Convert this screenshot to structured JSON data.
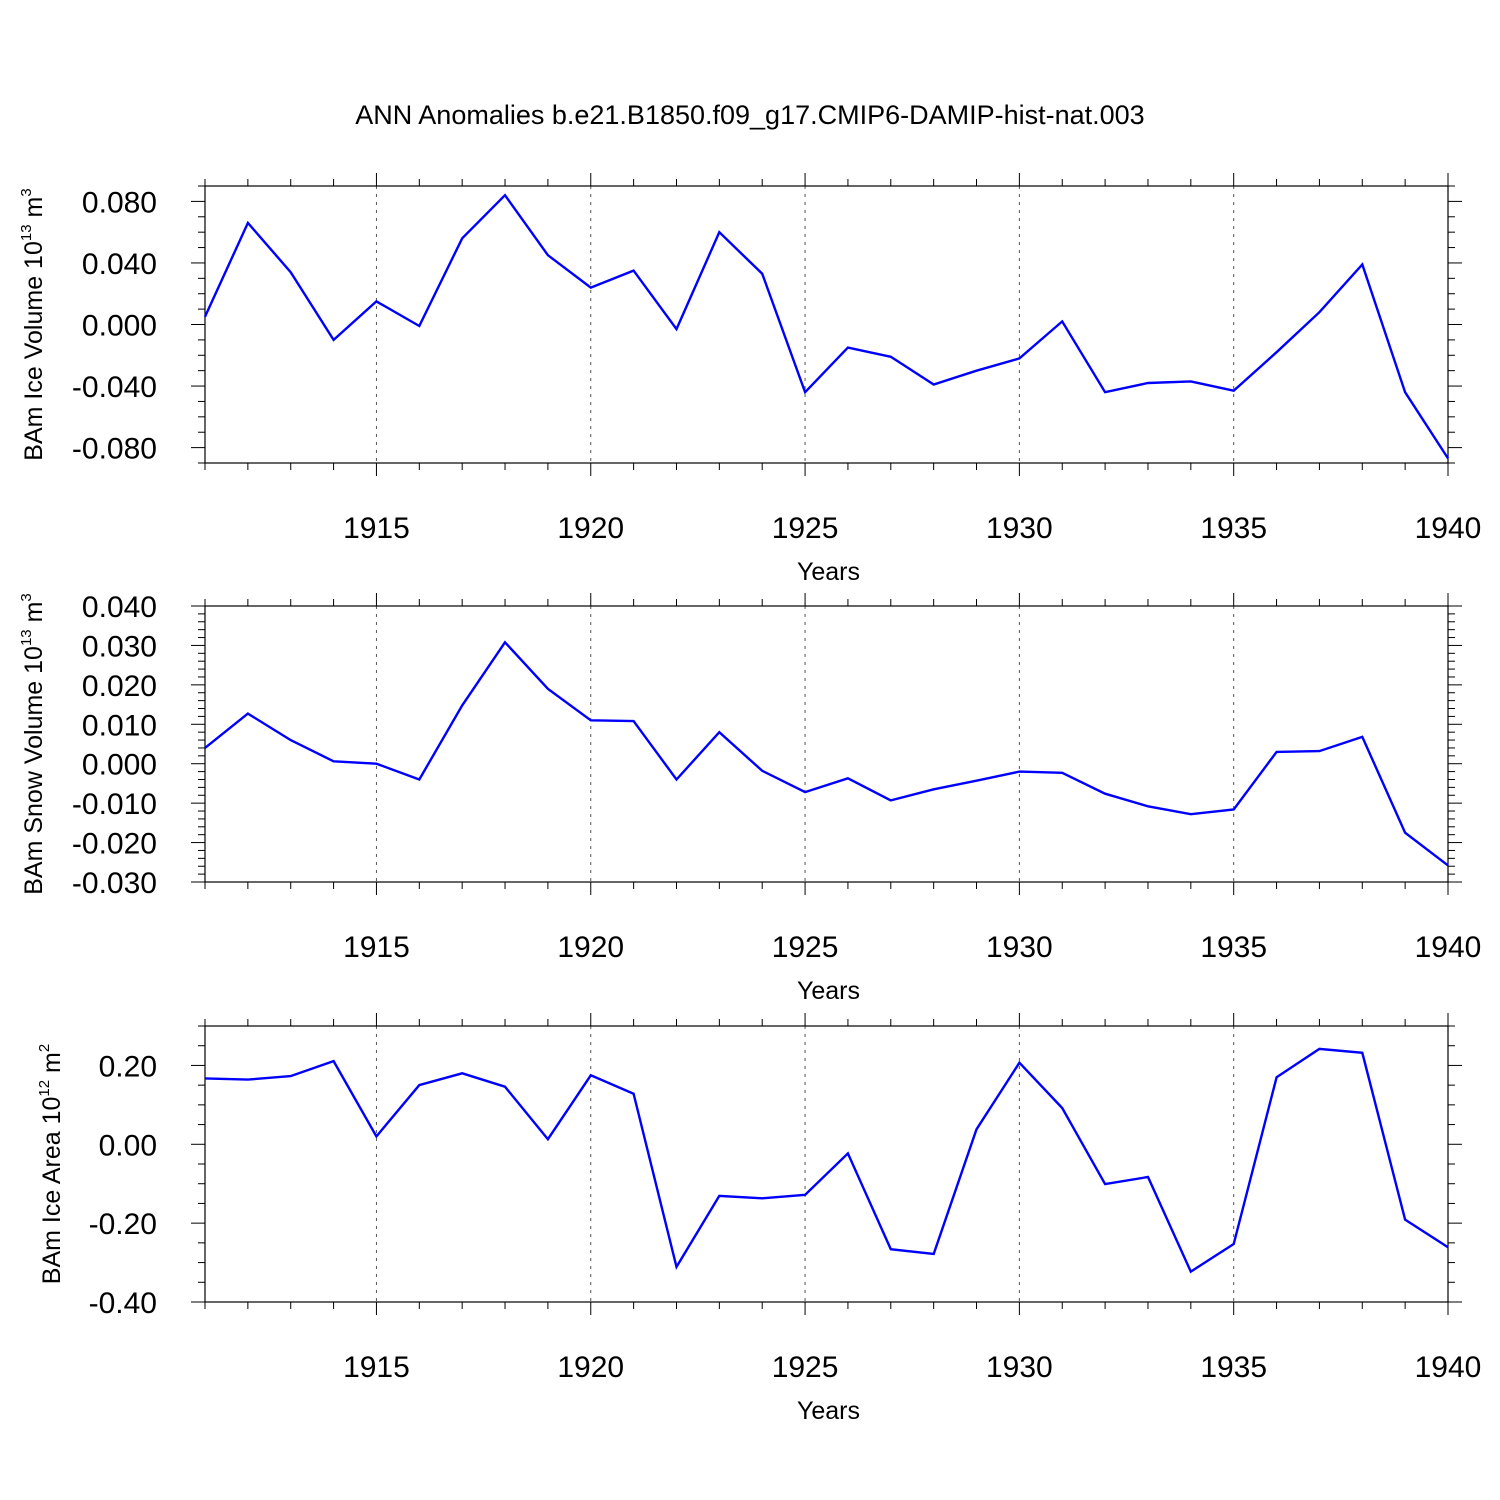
{
  "figure": {
    "title": "ANN Anomalies b.e21.B1850.f09_g17.CMIP6-DAMIP-hist-nat.003"
  },
  "chart_data": [
    {
      "type": "line",
      "ylabel": {
        "main": "BAm Ice Volume 10",
        "exp": "13",
        "unit": " m",
        "unit_exp": "3"
      },
      "xlabel": "Years",
      "xlim": [
        1911,
        1940
      ],
      "ylim": [
        -0.09,
        0.09
      ],
      "xticks": [
        1915,
        1920,
        1925,
        1930,
        1935,
        1940
      ],
      "yticks": [
        -0.08,
        -0.04,
        0.0,
        0.04,
        0.08
      ],
      "ytick_labels": [
        "-0.080",
        "-0.040",
        "0.000",
        "0.040",
        "0.080"
      ],
      "yminor_step": 0.01,
      "color": "#0000ff",
      "x": [
        1911,
        1912,
        1913,
        1914,
        1915,
        1916,
        1917,
        1918,
        1919,
        1920,
        1921,
        1922,
        1923,
        1924,
        1925,
        1926,
        1927,
        1928,
        1929,
        1930,
        1931,
        1932,
        1933,
        1934,
        1935,
        1936,
        1937,
        1938,
        1939,
        1940
      ],
      "y": [
        0.005,
        0.066,
        0.034,
        -0.01,
        0.015,
        -0.001,
        0.056,
        0.084,
        0.045,
        0.024,
        0.035,
        -0.003,
        0.06,
        0.033,
        -0.044,
        -0.015,
        -0.021,
        -0.039,
        -0.03,
        -0.022,
        0.002,
        -0.044,
        -0.038,
        -0.037,
        -0.043,
        -0.018,
        0.008,
        0.039,
        -0.044,
        -0.087
      ]
    },
    {
      "type": "line",
      "ylabel": {
        "main": "BAm Snow Volume 10",
        "exp": "13",
        "unit": " m",
        "unit_exp": "3"
      },
      "xlabel": "Years",
      "xlim": [
        1911,
        1940
      ],
      "ylim": [
        -0.03,
        0.04
      ],
      "xticks": [
        1915,
        1920,
        1925,
        1930,
        1935,
        1940
      ],
      "yticks": [
        -0.03,
        -0.02,
        -0.01,
        0.0,
        0.01,
        0.02,
        0.03,
        0.04
      ],
      "ytick_labels": [
        "-0.030",
        "-0.020",
        "-0.010",
        "0.000",
        "0.010",
        "0.020",
        "0.030",
        "0.040"
      ],
      "yminor_step": 0.002,
      "color": "#0000ff",
      "x": [
        1911,
        1912,
        1913,
        1914,
        1915,
        1916,
        1917,
        1918,
        1919,
        1920,
        1921,
        1922,
        1923,
        1924,
        1925,
        1926,
        1927,
        1928,
        1929,
        1930,
        1931,
        1932,
        1933,
        1934,
        1935,
        1936,
        1937,
        1938,
        1939,
        1940
      ],
      "y": [
        0.004,
        0.0127,
        0.006,
        0.0006,
        0.0,
        -0.004,
        0.0148,
        0.0308,
        0.019,
        0.011,
        0.0108,
        -0.004,
        0.008,
        -0.0018,
        -0.0072,
        -0.0037,
        -0.0093,
        -0.0065,
        -0.0043,
        -0.002,
        -0.0023,
        -0.0076,
        -0.0108,
        -0.0128,
        -0.0116,
        0.003,
        0.0032,
        0.0068,
        -0.0175,
        -0.0258
      ]
    },
    {
      "type": "line",
      "ylabel": {
        "main": "BAm Ice Area 10",
        "exp": "12",
        "unit": " m",
        "unit_exp": "2"
      },
      "xlabel": "Years",
      "xlim": [
        1911,
        1940
      ],
      "ylim": [
        -0.4,
        0.3
      ],
      "xticks": [
        1915,
        1920,
        1925,
        1930,
        1935,
        1940
      ],
      "yticks": [
        -0.4,
        -0.2,
        0.0,
        0.2
      ],
      "ytick_labels": [
        "-0.40",
        "-0.20",
        "0.00",
        "0.20"
      ],
      "yminor_step": 0.05,
      "color": "#0000ff",
      "x": [
        1911,
        1912,
        1913,
        1914,
        1915,
        1916,
        1917,
        1918,
        1919,
        1920,
        1921,
        1922,
        1923,
        1924,
        1925,
        1926,
        1927,
        1928,
        1929,
        1930,
        1931,
        1932,
        1933,
        1934,
        1935,
        1936,
        1937,
        1938,
        1939,
        1940
      ],
      "y": [
        0.167,
        0.164,
        0.173,
        0.211,
        0.02,
        0.15,
        0.18,
        0.146,
        0.013,
        0.175,
        0.128,
        -0.311,
        -0.131,
        -0.137,
        -0.128,
        -0.023,
        -0.266,
        -0.278,
        0.038,
        0.207,
        0.092,
        -0.101,
        -0.083,
        -0.323,
        -0.253,
        0.17,
        0.242,
        0.232,
        -0.191,
        -0.261
      ]
    }
  ]
}
